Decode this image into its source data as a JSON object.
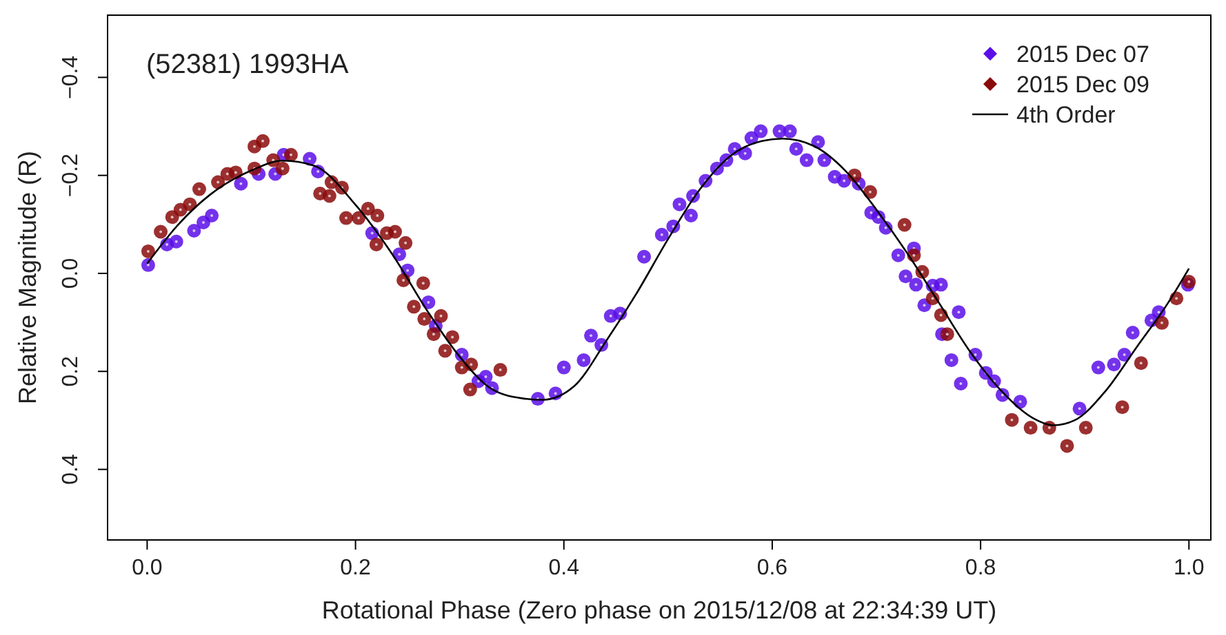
{
  "chart_data": {
    "type": "scatter",
    "title": "(52381) 1993HA",
    "xlabel": "Rotational Phase (Zero phase on 2015/12/08 at 22:34:39 UT)",
    "ylabel": "Relative Magnitude (R)",
    "xlim": [
      -0.038,
      1.021
    ],
    "ylim": [
      0.544,
      -0.527
    ],
    "xticks": [
      {
        "value": 0,
        "label": "0.0"
      },
      {
        "value": 0.2,
        "label": "0.2"
      },
      {
        "value": 0.4,
        "label": "0.4"
      },
      {
        "value": 0.6,
        "label": "0.6"
      },
      {
        "value": 0.8,
        "label": "0.8"
      },
      {
        "value": 1,
        "label": "1.0"
      }
    ],
    "yticks": [
      {
        "value": -0.4,
        "label": "−0.4"
      },
      {
        "value": -0.2,
        "label": "−0.2"
      },
      {
        "value": 0,
        "label": "0.0"
      },
      {
        "value": 0.2,
        "label": "0.2"
      },
      {
        "value": 0.4,
        "label": "0.4"
      }
    ],
    "grid": false,
    "legend": "top right",
    "series": [
      {
        "name": "2015 Dec 07",
        "color": "#5b0ee8",
        "marker": "circle",
        "x": [
          0.001,
          0.019,
          0.028,
          0.045,
          0.054,
          0.062,
          0.09,
          0.107,
          0.123,
          0.131,
          0.156,
          0.164,
          0.216,
          0.242,
          0.25,
          0.27,
          0.277,
          0.302,
          0.318,
          0.325,
          0.331,
          0.375,
          0.392,
          0.4,
          0.419,
          0.426,
          0.436,
          0.445,
          0.454,
          0.477,
          0.494,
          0.505,
          0.511,
          0.522,
          0.524,
          0.536,
          0.547,
          0.556,
          0.564,
          0.574,
          0.58,
          0.589,
          0.607,
          0.617,
          0.623,
          0.633,
          0.644,
          0.65,
          0.66,
          0.669,
          0.683,
          0.695,
          0.702,
          0.709,
          0.721,
          0.728,
          0.736,
          0.738,
          0.746,
          0.754,
          0.762,
          0.763,
          0.772,
          0.779,
          0.781,
          0.795,
          0.805,
          0.813,
          0.821,
          0.838,
          0.895,
          0.913,
          0.928,
          0.938,
          0.946,
          0.964,
          0.971,
          0.999
        ],
        "values": [
          -0.017,
          -0.059,
          -0.065,
          -0.087,
          -0.104,
          -0.118,
          -0.183,
          -0.203,
          -0.203,
          -0.242,
          -0.234,
          -0.208,
          -0.082,
          -0.039,
          -0.006,
          0.059,
          0.107,
          0.166,
          0.22,
          0.211,
          0.234,
          0.256,
          0.245,
          0.192,
          0.177,
          0.127,
          0.146,
          0.087,
          0.082,
          -0.034,
          -0.079,
          -0.096,
          -0.141,
          -0.118,
          -0.158,
          -0.189,
          -0.214,
          -0.231,
          -0.254,
          -0.245,
          -0.276,
          -0.29,
          -0.29,
          -0.29,
          -0.254,
          -0.231,
          -0.268,
          -0.231,
          -0.197,
          -0.189,
          -0.183,
          -0.124,
          -0.115,
          -0.093,
          -0.037,
          0.006,
          -0.051,
          0.023,
          0.065,
          0.025,
          0.023,
          0.124,
          0.177,
          0.079,
          0.225,
          0.166,
          0.203,
          0.22,
          0.248,
          0.262,
          0.276,
          0.192,
          0.186,
          0.166,
          0.121,
          0.096,
          0.079,
          0.023
        ]
      },
      {
        "name": "2015 Dec 09",
        "color": "#8b0a0a",
        "marker": "circle",
        "x": [
          0.001,
          0.013,
          0.024,
          0.032,
          0.041,
          0.05,
          0.068,
          0.077,
          0.085,
          0.103,
          0.111,
          0.103,
          0.121,
          0.13,
          0.138,
          0.166,
          0.175,
          0.177,
          0.187,
          0.191,
          0.203,
          0.212,
          0.22,
          0.221,
          0.23,
          0.238,
          0.248,
          0.246,
          0.265,
          0.256,
          0.266,
          0.275,
          0.282,
          0.293,
          0.286,
          0.302,
          0.31,
          0.311,
          0.339,
          0.679,
          0.694,
          0.727,
          0.736,
          0.744,
          0.754,
          0.762,
          0.768,
          0.83,
          0.848,
          0.866,
          0.883,
          0.901,
          0.936,
          0.954,
          0.974,
          0.988,
          1.0
        ],
        "values": [
          -0.045,
          -0.085,
          -0.115,
          -0.13,
          -0.141,
          -0.172,
          -0.186,
          -0.203,
          -0.206,
          -0.259,
          -0.27,
          -0.214,
          -0.231,
          -0.214,
          -0.242,
          -0.163,
          -0.158,
          -0.186,
          -0.175,
          -0.113,
          -0.113,
          -0.132,
          -0.059,
          -0.118,
          -0.082,
          -0.085,
          -0.062,
          0.014,
          0.02,
          0.068,
          0.093,
          0.124,
          0.087,
          0.13,
          0.158,
          0.192,
          0.237,
          0.186,
          0.197,
          -0.2,
          -0.166,
          -0.099,
          -0.037,
          -0.003,
          0.051,
          0.085,
          0.124,
          0.299,
          0.315,
          0.315,
          0.352,
          0.315,
          0.273,
          0.183,
          0.101,
          0.051,
          0.017
        ]
      },
      {
        "name": "4th Order",
        "color": "#000000",
        "type": "line",
        "line_style": "solid",
        "marker": "none",
        "x": [
          0,
          0.03,
          0.06,
          0.1,
          0.13,
          0.16,
          0.2,
          0.235,
          0.27,
          0.3,
          0.33,
          0.36,
          0.38,
          0.41,
          0.44,
          0.47,
          0.5,
          0.53,
          0.56,
          0.59,
          0.61,
          0.64,
          0.67,
          0.7,
          0.73,
          0.76,
          0.79,
          0.82,
          0.85,
          0.87,
          0.89,
          0.92,
          0.95,
          0.98,
          1.0
        ],
        "values": [
          -0.02,
          -0.1,
          -0.16,
          -0.21,
          -0.23,
          -0.22,
          -0.14,
          -0.04,
          0.08,
          0.17,
          0.235,
          0.255,
          0.258,
          0.23,
          0.14,
          0.04,
          -0.07,
          -0.17,
          -0.24,
          -0.27,
          -0.275,
          -0.26,
          -0.21,
          -0.13,
          -0.04,
          0.06,
          0.16,
          0.24,
          0.295,
          0.31,
          0.3,
          0.24,
          0.15,
          0.06,
          -0.01
        ]
      }
    ]
  }
}
